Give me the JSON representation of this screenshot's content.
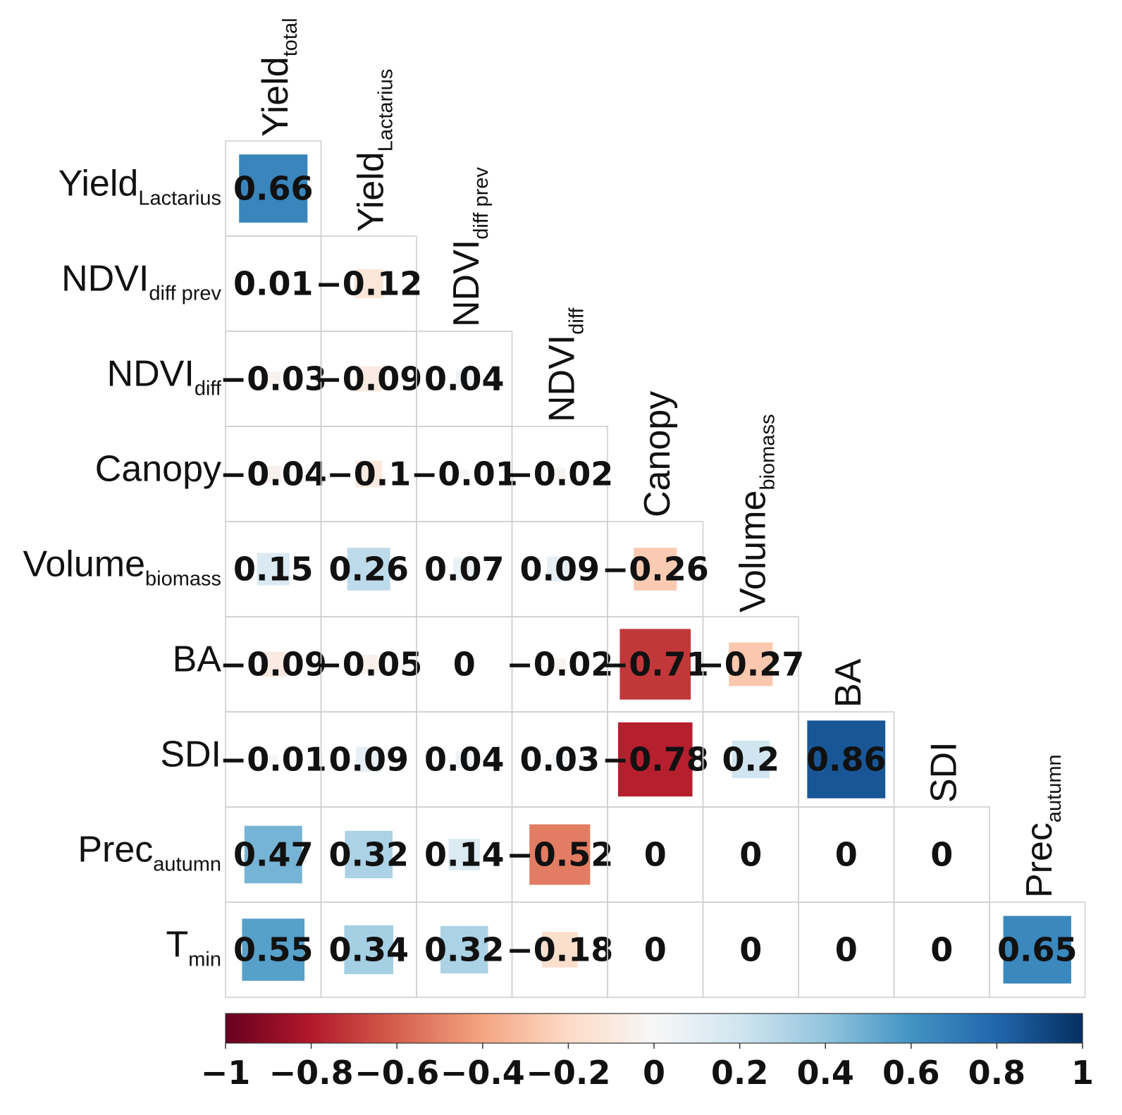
{
  "chart_data": {
    "type": "heatmap",
    "variables": [
      {
        "base": "Yield",
        "sub": "total"
      },
      {
        "base": "Yield",
        "sub": "Lactarius"
      },
      {
        "base": "NDVI",
        "sub": "diff prev"
      },
      {
        "base": "NDVI",
        "sub": "diff"
      },
      {
        "base": "Canopy",
        "sub": ""
      },
      {
        "base": "Volume",
        "sub": "biomass"
      },
      {
        "base": "BA",
        "sub": ""
      },
      {
        "base": "SDI",
        "sub": ""
      },
      {
        "base": "Prec",
        "sub": "autumn"
      },
      {
        "base": "T",
        "sub": "min"
      }
    ],
    "rows": [
      {
        "var": 1,
        "values": [
          "0.66"
        ]
      },
      {
        "var": 2,
        "values": [
          "0.01",
          "−0.12"
        ]
      },
      {
        "var": 3,
        "values": [
          "−0.03",
          "−0.09",
          "0.04"
        ]
      },
      {
        "var": 4,
        "values": [
          "−0.04",
          "−0.1",
          "−0.01",
          "−0.02"
        ]
      },
      {
        "var": 5,
        "values": [
          "0.15",
          "0.26",
          "0.07",
          "0.09",
          "−0.26"
        ]
      },
      {
        "var": 6,
        "values": [
          "−0.09",
          "−0.05",
          "0",
          "−0.02",
          "−0.71",
          "−0.27"
        ]
      },
      {
        "var": 7,
        "values": [
          "−0.01",
          "0.09",
          "0.04",
          "0.03",
          "−0.78",
          "0.2",
          "0.86"
        ]
      },
      {
        "var": 8,
        "values": [
          "0.47",
          "0.32",
          "0.14",
          "−0.52",
          "0",
          "0",
          "0",
          "0"
        ]
      },
      {
        "var": 9,
        "values": [
          "0.55",
          "0.34",
          "0.32",
          "−0.18",
          "0",
          "0",
          "0",
          "0",
          "0.65"
        ]
      }
    ],
    "colorbar": {
      "range": [
        -1,
        1
      ],
      "ticks": [
        "−1",
        "−0.8",
        "−0.6",
        "−0.4",
        "−0.2",
        "0",
        "0.2",
        "0.4",
        "0.6",
        "0.8",
        "1"
      ],
      "colormap": "RdBu",
      "colors": [
        "#67001f",
        "#b2182b",
        "#d6604d",
        "#f4a582",
        "#fddbc7",
        "#f7f7f7",
        "#d1e5f0",
        "#92c5de",
        "#4393c3",
        "#2166ac",
        "#053061"
      ]
    },
    "grid": true
  }
}
